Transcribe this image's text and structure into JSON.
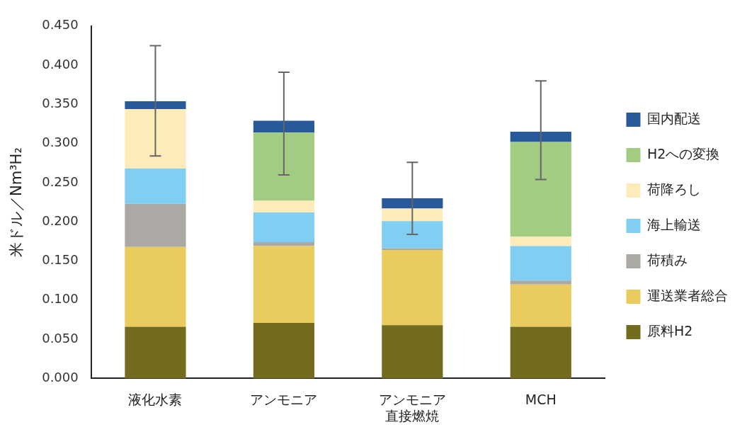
{
  "chart_data": {
    "type": "bar",
    "stacked": true,
    "ylabel": "米ドル／Nm³H₂",
    "categories": [
      "液化水素",
      "アンモニア",
      "アンモニア直接燃焼",
      "MCH"
    ],
    "series": [
      {
        "name": "原料H2",
        "color": "#736b1e",
        "values": [
          0.066,
          0.071,
          0.068,
          0.066
        ]
      },
      {
        "name": "運送業者総合",
        "color": "#eacb5e",
        "values": [
          0.102,
          0.098,
          0.096,
          0.054
        ]
      },
      {
        "name": "荷積み",
        "color": "#aca8a4",
        "values": [
          0.055,
          0.005,
          0.002,
          0.005
        ]
      },
      {
        "name": "海上輸送",
        "color": "#80cff3",
        "values": [
          0.045,
          0.038,
          0.035,
          0.044
        ]
      },
      {
        "name": "荷降ろし",
        "color": "#fdecb9",
        "values": [
          0.076,
          0.015,
          0.016,
          0.012
        ]
      },
      {
        "name": "H2への変換",
        "color": "#a3cc83",
        "values": [
          0,
          0.087,
          0,
          0.121
        ]
      },
      {
        "name": "国内配送",
        "color": "#285a9b",
        "values": [
          0.01,
          0.015,
          0.013,
          0.013
        ],
        "errors": [
          [
            0.284,
            0.425
          ],
          [
            0.26,
            0.391
          ],
          [
            0.184,
            0.276
          ],
          [
            0.254,
            0.38
          ]
        ]
      }
    ],
    "ylim": [
      0,
      0.45
    ],
    "yticks": [
      {
        "value": 0,
        "label": "0.000"
      },
      {
        "value": 0.05,
        "label": "0.050"
      },
      {
        "value": 0.1,
        "label": "0.100"
      },
      {
        "value": 0.15,
        "label": "0.150"
      },
      {
        "value": 0.2,
        "label": "0.200"
      },
      {
        "value": 0.25,
        "label": "0.250"
      },
      {
        "value": 0.3,
        "label": "0.300"
      },
      {
        "value": 0.35,
        "label": "0.350"
      },
      {
        "value": 0.4,
        "label": "0.400"
      },
      {
        "value": 0.45,
        "label": "0.450"
      }
    ],
    "grid": false,
    "legend": "right"
  }
}
